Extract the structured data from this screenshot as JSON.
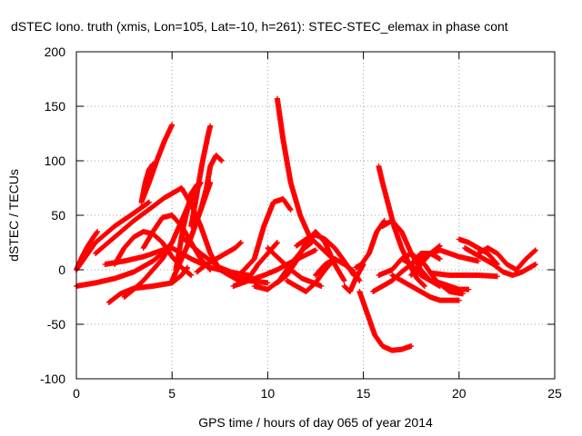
{
  "chart_data": {
    "type": "scatter",
    "title": "dSTEC Iono. truth (xmis, Lon=105, Lat=-10, h=261): STEC-STEC_elemax in phase cont",
    "xlabel": "GPS time / hours of day 065 of year 2014",
    "ylabel": "dSTEC  / TECUs",
    "xlim": [
      0,
      25
    ],
    "ylim": [
      -100,
      200
    ],
    "x_ticks": [
      0,
      5,
      10,
      15,
      20,
      25
    ],
    "y_ticks": [
      -100,
      -50,
      0,
      50,
      100,
      150,
      200
    ],
    "grid": true,
    "marker": "+",
    "color": "#ff0000",
    "series": [
      {
        "x": [
          0.0,
          0.3,
          0.6,
          0.9,
          1.1
        ],
        "y": [
          0,
          12,
          22,
          30,
          35
        ]
      },
      {
        "x": [
          0.0,
          1.0,
          2.0,
          3.0,
          3.8
        ],
        "y": [
          0,
          25,
          40,
          52,
          62
        ]
      },
      {
        "x": [
          3.4,
          3.6,
          3.8,
          4.0
        ],
        "y": [
          62,
          80,
          92,
          97
        ]
      },
      {
        "x": [
          0.0,
          1.0,
          2.0,
          3.0,
          4.0,
          4.5,
          5.0
        ],
        "y": [
          -15,
          -12,
          -8,
          -2,
          8,
          15,
          25
        ]
      },
      {
        "x": [
          1.0,
          2.0,
          3.0,
          4.0,
          4.6,
          5.0
        ],
        "y": [
          15,
          30,
          45,
          58,
          66,
          70
        ]
      },
      {
        "x": [
          3.4,
          3.8,
          4.2,
          4.6,
          5.0
        ],
        "y": [
          62,
          80,
          100,
          118,
          133
        ]
      },
      {
        "x": [
          1.7,
          2.3,
          3.0,
          4.0,
          5.0,
          5.5,
          5.8
        ],
        "y": [
          -30,
          -22,
          -17,
          -15,
          -12,
          -5,
          2
        ]
      },
      {
        "x": [
          1.5,
          2.5,
          3.5,
          4.5,
          5.0,
          6.0,
          7.0,
          8.0,
          9.0
        ],
        "y": [
          5,
          8,
          12,
          18,
          20,
          10,
          2,
          -2,
          -5
        ]
      },
      {
        "x": [
          2.5,
          3.0,
          3.5,
          4.0,
          4.5,
          5.0,
          5.5,
          6.0,
          6.5
        ],
        "y": [
          -25,
          -18,
          -10,
          0,
          10,
          25,
          45,
          65,
          80
        ]
      },
      {
        "x": [
          2.0,
          2.5,
          3.0,
          3.5,
          4.0,
          4.5,
          5.0,
          5.5,
          6.0
        ],
        "y": [
          5,
          20,
          30,
          35,
          33,
          25,
          12,
          2,
          -5
        ]
      },
      {
        "x": [
          3.5,
          4.0,
          4.5,
          5.0,
          5.5,
          6.0,
          6.5,
          7.0
        ],
        "y": [
          20,
          35,
          48,
          50,
          40,
          25,
          10,
          0
        ]
      },
      {
        "x": [
          5.0,
          5.2,
          5.5,
          6.0,
          6.5,
          7.0
        ],
        "y": [
          -10,
          -2,
          10,
          30,
          55,
          80
        ]
      },
      {
        "x": [
          5.2,
          5.6,
          6.0,
          6.3
        ],
        "y": [
          0,
          40,
          70,
          78
        ]
      },
      {
        "x": [
          6.0,
          6.3,
          6.6,
          6.9,
          7.0
        ],
        "y": [
          40,
          70,
          100,
          125,
          132
        ]
      },
      {
        "x": [
          6.5,
          6.8,
          7.0,
          7.3,
          7.6
        ],
        "y": [
          55,
          75,
          95,
          105,
          100
        ]
      },
      {
        "x": [
          5.0,
          5.5,
          6.0,
          6.5,
          7.0,
          7.5,
          8.0,
          9.0,
          10.0
        ],
        "y": [
          70,
          75,
          60,
          40,
          15,
          0,
          -5,
          -10,
          -12
        ]
      },
      {
        "x": [
          6.3,
          6.8,
          7.3,
          7.8,
          8.3,
          8.6
        ],
        "y": [
          -2,
          5,
          10,
          15,
          20,
          25
        ]
      },
      {
        "x": [
          5.5,
          6.5,
          7.5,
          8.5,
          9.3,
          9.8,
          10.3,
          10.8,
          11.2
        ],
        "y": [
          30,
          15,
          2,
          -5,
          10,
          40,
          62,
          65,
          55
        ]
      },
      {
        "x": [
          8.0,
          8.5,
          9.0,
          9.5,
          10.0,
          10.5
        ],
        "y": [
          -5,
          -10,
          -8,
          5,
          15,
          25
        ]
      },
      {
        "x": [
          8.2,
          9.0,
          9.8,
          10.5,
          11.0,
          11.8,
          12.5
        ],
        "y": [
          -15,
          -10,
          -5,
          0,
          5,
          12,
          18
        ]
      },
      {
        "x": [
          9.3,
          10.0,
          10.6,
          11.2,
          11.8,
          12.3
        ],
        "y": [
          -15,
          -18,
          -10,
          5,
          18,
          25
        ]
      },
      {
        "x": [
          10.5,
          10.8,
          11.2,
          11.7,
          12.2,
          12.8,
          13.4
        ],
        "y": [
          157,
          120,
          80,
          50,
          30,
          20,
          10
        ]
      },
      {
        "x": [
          10.0,
          10.6,
          11.2,
          11.8,
          12.4,
          12.8
        ],
        "y": [
          20,
          10,
          0,
          -8,
          -12,
          -15
        ]
      },
      {
        "x": [
          10.5,
          11.0,
          11.5,
          12.0,
          12.5,
          13.0,
          13.5,
          14.0
        ],
        "y": [
          -12,
          -5,
          8,
          25,
          35,
          25,
          5,
          -10
        ]
      },
      {
        "x": [
          11.0,
          11.5,
          12.0,
          12.5,
          13.0,
          13.5
        ],
        "y": [
          -10,
          -15,
          -20,
          -12,
          0,
          10
        ]
      },
      {
        "x": [
          11.5,
          12.0,
          12.5,
          13.0,
          13.5,
          14.0,
          14.5
        ],
        "y": [
          22,
          28,
          32,
          28,
          20,
          8,
          -5
        ]
      },
      {
        "x": [
          12.5,
          13.0,
          13.5,
          14.0,
          14.4,
          14.8
        ],
        "y": [
          -5,
          5,
          10,
          5,
          0,
          -10
        ]
      },
      {
        "x": [
          14.0,
          14.3,
          14.6,
          15.0
        ],
        "y": [
          -15,
          -20,
          -8,
          5
        ]
      },
      {
        "x": [
          14.6,
          14.9,
          15.3,
          15.7,
          16.1
        ],
        "y": [
          2,
          5,
          15,
          35,
          45
        ]
      },
      {
        "x": [
          14.8,
          15.2,
          15.6,
          16.0,
          16.5,
          17.0,
          17.5
        ],
        "y": [
          -20,
          -40,
          -60,
          -70,
          -74,
          -73,
          -70
        ]
      },
      {
        "x": [
          15.8,
          16.0,
          16.3,
          16.6,
          17.0,
          17.4,
          17.8,
          18.2
        ],
        "y": [
          95,
          80,
          60,
          40,
          20,
          5,
          -8,
          -15
        ]
      },
      {
        "x": [
          16.0,
          16.5,
          17.0,
          17.5,
          18.0,
          18.5,
          19.0
        ],
        "y": [
          40,
          45,
          35,
          15,
          0,
          -10,
          -15
        ]
      },
      {
        "x": [
          15.8,
          16.5,
          17.0,
          17.5,
          18.2,
          18.8,
          19.5,
          20.2
        ],
        "y": [
          -5,
          0,
          10,
          15,
          5,
          -10,
          -20,
          -22
        ]
      },
      {
        "x": [
          15.5,
          16.0,
          16.5,
          17.0,
          17.5,
          18.0,
          18.5,
          19.0
        ],
        "y": [
          -20,
          -15,
          -10,
          -2,
          5,
          15,
          15,
          10
        ]
      },
      {
        "x": [
          16.5,
          17.0,
          17.5,
          18.0,
          18.5,
          19.0,
          19.5,
          20.0
        ],
        "y": [
          -5,
          -10,
          -15,
          -20,
          -25,
          -28,
          -28,
          -28
        ]
      },
      {
        "x": [
          17.0,
          17.5,
          18.0,
          18.5,
          19.0,
          19.5,
          20.0,
          20.5
        ],
        "y": [
          10,
          5,
          -5,
          -10,
          -12,
          -15,
          -18,
          -18
        ]
      },
      {
        "x": [
          17.5,
          18.0,
          18.5,
          19.0
        ],
        "y": [
          -5,
          5,
          15,
          22
        ]
      },
      {
        "x": [
          18.5,
          19.0,
          19.5,
          20.0,
          21.0,
          22.0
        ],
        "y": [
          -3,
          -4,
          -5,
          -5,
          -5,
          -6
        ]
      },
      {
        "x": [
          18.0,
          18.5,
          19.0,
          19.5,
          20.0,
          20.5,
          21.0
        ],
        "y": [
          10,
          15,
          18,
          15,
          12,
          10,
          8
        ]
      },
      {
        "x": [
          20.0,
          20.5,
          21.0,
          21.5,
          22.0
        ],
        "y": [
          28,
          25,
          20,
          15,
          5
        ]
      },
      {
        "x": [
          20.3,
          20.8,
          21.3,
          21.8,
          22.3,
          22.8,
          23.3,
          24.0
        ],
        "y": [
          20,
          15,
          10,
          5,
          -2,
          -5,
          -2,
          5
        ]
      },
      {
        "x": [
          21.0,
          21.5,
          22.0,
          22.5,
          23.0,
          23.5,
          24.0
        ],
        "y": [
          15,
          20,
          15,
          5,
          0,
          10,
          18
        ]
      }
    ]
  }
}
